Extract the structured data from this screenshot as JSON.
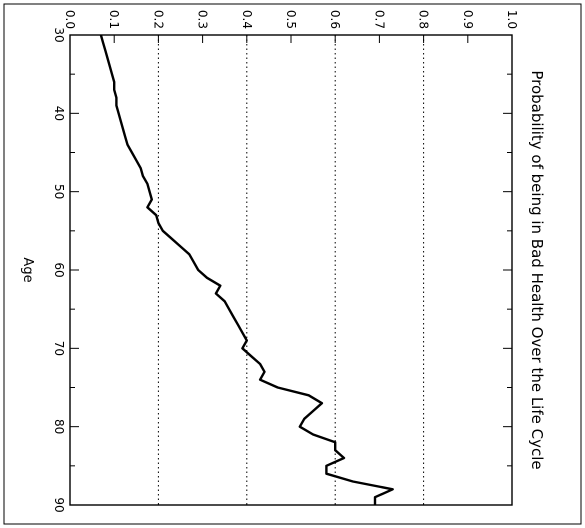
{
  "chart_data": {
    "type": "line",
    "title": "Probability of being in Bad Health Over the Life Cycle",
    "xlabel": "Age",
    "ylabel": "",
    "xlim": [
      30,
      90
    ],
    "ylim": [
      0,
      1
    ],
    "x_ticks": [
      "30",
      "40",
      "50",
      "60",
      "70",
      "80",
      "90"
    ],
    "y_ticks": [
      "0.0",
      "0.1",
      "0.2",
      "0.3",
      "0.4",
      "0.5",
      "0.6",
      "0.7",
      "0.8",
      "0.9",
      "1.0"
    ],
    "y_gridlines": [
      0.2,
      0.4,
      0.6,
      0.8
    ],
    "grid": "dotted at 0.2, 0.4, 0.6, 0.8",
    "orientation": "rotated 90 degrees clockwise",
    "series": [
      {
        "name": "",
        "color": "#000000",
        "x": [
          30,
          31,
          32,
          33,
          34,
          35,
          36,
          37,
          38,
          39,
          40,
          41,
          42,
          43,
          44,
          45,
          46,
          47,
          48,
          49,
          50,
          51,
          52,
          53,
          54,
          55,
          56,
          57,
          58,
          59,
          60,
          61,
          62,
          63,
          64,
          65,
          66,
          67,
          68,
          69,
          70,
          71,
          72,
          73,
          74,
          75,
          76,
          77,
          78,
          79,
          80,
          81,
          82,
          83,
          84,
          85,
          86,
          87,
          88,
          89,
          90
        ],
        "y": [
          0.07,
          0.075,
          0.08,
          0.085,
          0.09,
          0.095,
          0.1,
          0.1,
          0.105,
          0.105,
          0.11,
          0.115,
          0.12,
          0.125,
          0.13,
          0.14,
          0.15,
          0.16,
          0.165,
          0.175,
          0.18,
          0.185,
          0.175,
          0.195,
          0.2,
          0.21,
          0.23,
          0.25,
          0.27,
          0.28,
          0.29,
          0.31,
          0.34,
          0.33,
          0.35,
          0.36,
          0.37,
          0.38,
          0.39,
          0.4,
          0.39,
          0.41,
          0.43,
          0.44,
          0.43,
          0.47,
          0.54,
          0.57,
          0.55,
          0.53,
          0.52,
          0.55,
          0.6,
          0.6,
          0.62,
          0.58,
          0.58,
          0.64,
          0.73,
          0.69,
          0.69
        ]
      }
    ]
  }
}
